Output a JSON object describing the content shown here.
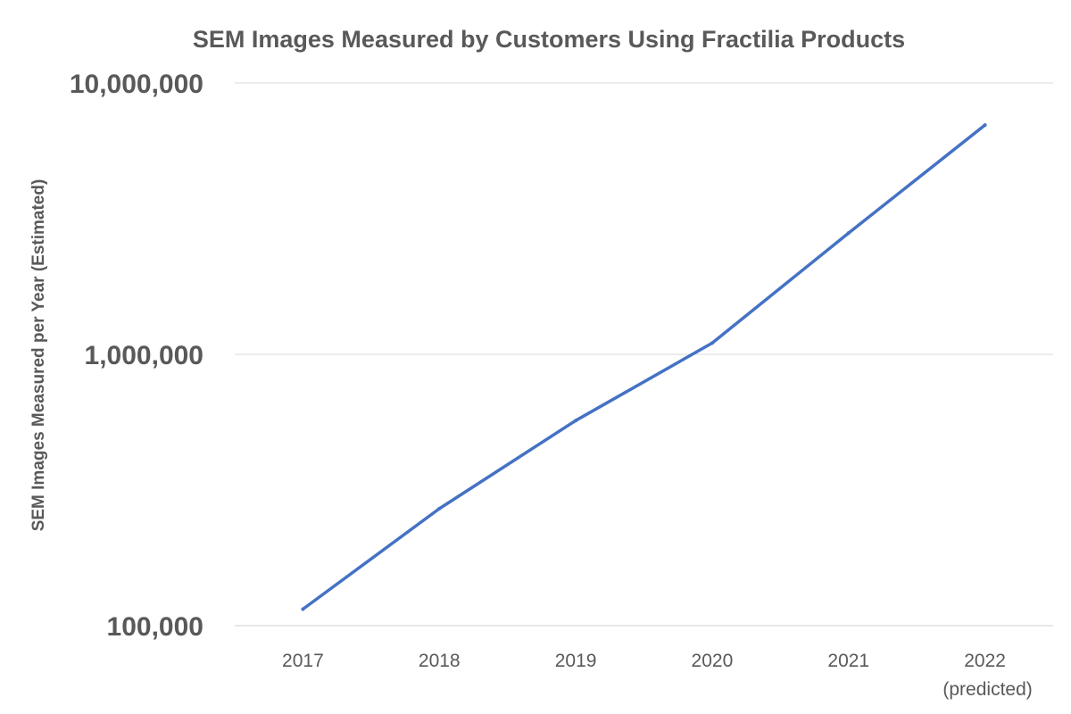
{
  "chart_data": {
    "type": "line",
    "title": "SEM Images Measured by Customers Using Fractilia Products",
    "ylabel": "SEM Images Measured per Year (Estimated)",
    "xlabel": "",
    "y_scale": "log",
    "ylim": [
      100000,
      10000000
    ],
    "y_ticks": [
      {
        "value": 10000000,
        "label": "10,000,000"
      },
      {
        "value": 1000000,
        "label": "1,000,000"
      },
      {
        "value": 100000,
        "label": "100,000"
      }
    ],
    "categories": [
      {
        "label": "2017",
        "sublabel": ""
      },
      {
        "label": "2018",
        "sublabel": ""
      },
      {
        "label": "2019",
        "sublabel": ""
      },
      {
        "label": "2020",
        "sublabel": ""
      },
      {
        "label": "2021",
        "sublabel": ""
      },
      {
        "label": "2022",
        "sublabel": "(predicted)"
      }
    ],
    "series": [
      {
        "color": "#4472c4",
        "values": [
          115000,
          270000,
          570000,
          1100000,
          2800000,
          7000000
        ]
      }
    ],
    "grid": "horizontal",
    "legend": "none"
  }
}
